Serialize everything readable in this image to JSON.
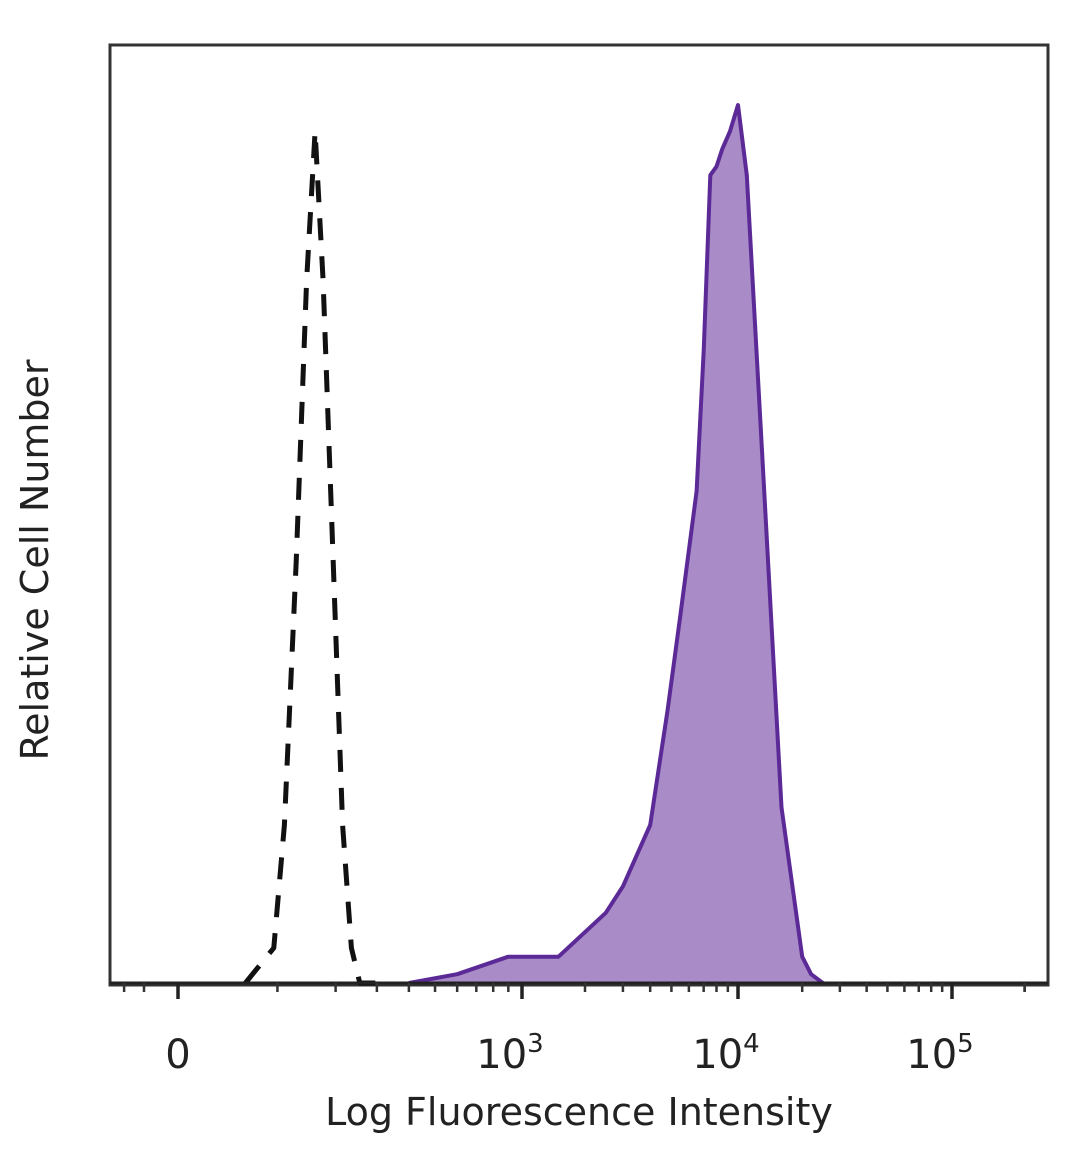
{
  "chart_data": {
    "type": "area",
    "xlabel": "Log Fluorescence Intensity",
    "ylabel": "Relative Cell Number",
    "x_scale": "biexponential",
    "xlim": [
      -300,
      250000
    ],
    "ylim": [
      0,
      100
    ],
    "x_ticks": [
      {
        "value": 0,
        "base": "0",
        "exp": ""
      },
      {
        "value": 1000,
        "base": "10",
        "exp": "3"
      },
      {
        "value": 10000,
        "base": "10",
        "exp": "4"
      },
      {
        "value": 100000,
        "base": "10",
        "exp": "5"
      }
    ],
    "grid": false,
    "series": [
      {
        "style": "dashed",
        "color": "#111111",
        "fill": "none",
        "x": [
          60,
          95,
          110,
          128,
          145,
          160,
          175,
          195,
          215,
          235,
          255,
          300
        ],
        "y": [
          0,
          4,
          18,
          48,
          80,
          97,
          80,
          48,
          18,
          4,
          0,
          0
        ]
      },
      {
        "style": "solid",
        "color": "#5b2a96",
        "fill": "#a98bc7",
        "x": [
          400,
          600,
          900,
          1500,
          2500,
          3000,
          4000,
          4800,
          5500,
          6500,
          7000,
          7500,
          8000,
          8500,
          9200,
          10000,
          11000,
          13000,
          16000,
          20000,
          22000,
          25000
        ],
        "y": [
          0,
          1,
          3,
          3,
          8,
          11,
          18,
          31,
          42,
          56,
          72,
          92,
          93,
          95,
          97,
          100,
          92,
          60,
          20,
          3,
          1,
          0
        ]
      }
    ]
  }
}
